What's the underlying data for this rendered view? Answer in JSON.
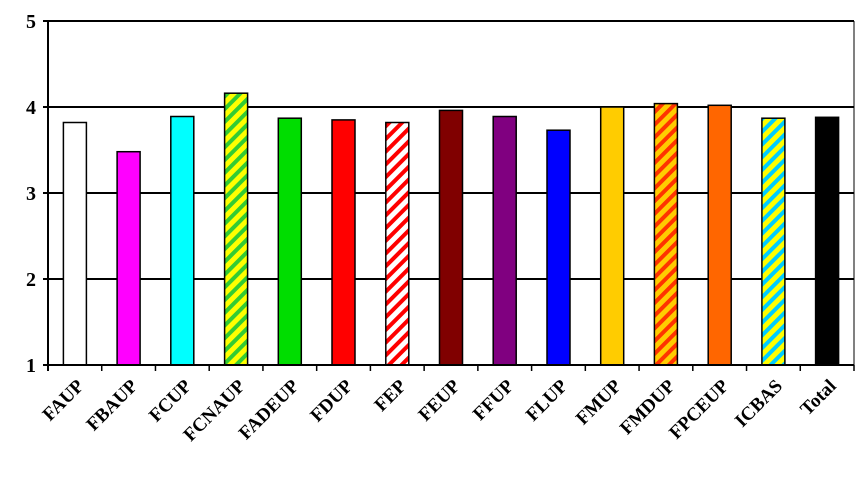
{
  "chart_data": {
    "type": "bar",
    "categories": [
      "FAUP",
      "FBAUP",
      "FCUP",
      "FCNAUP",
      "FADEUP",
      "FDUP",
      "FEP",
      "FEUP",
      "FFUP",
      "FLUP",
      "FMUP",
      "FMDUP",
      "FPCEUP",
      "ICBAS",
      "Total"
    ],
    "values": [
      3.82,
      3.48,
      3.89,
      4.16,
      3.87,
      3.85,
      3.82,
      3.96,
      3.89,
      3.73,
      4.0,
      4.04,
      4.02,
      3.87,
      3.88
    ],
    "colors": [
      "#ffffff",
      "#ff00ff",
      "#00ffff",
      "#ffff00",
      "#00dd00",
      "#ff0000",
      "#ffffff",
      "#800000",
      "#800080",
      "#0000ff",
      "#ffcc00",
      "#ffcc00",
      "#ff6600",
      "#ffff00",
      "#000000"
    ],
    "patterns": [
      null,
      null,
      null,
      "diag-yellow-green",
      null,
      null,
      "diag-white-red",
      null,
      null,
      null,
      null,
      "diag-yellow-red",
      null,
      "diag-yellow-cyan",
      null
    ],
    "yticks": [
      1,
      2,
      3,
      4,
      5
    ],
    "ylim": [
      1,
      5
    ],
    "grid": true,
    "legend": false,
    "title": "",
    "xlabel": "",
    "ylabel": ""
  }
}
